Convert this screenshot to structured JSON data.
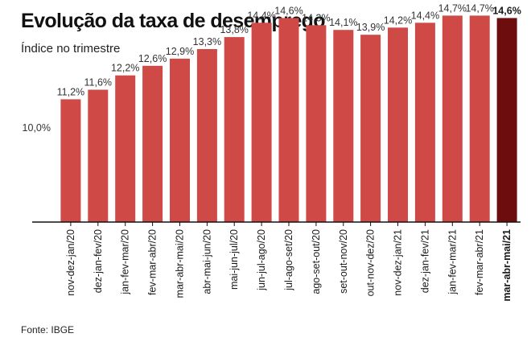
{
  "header": {
    "title": "Evolução da taxa de desemprego",
    "subtitle": "Índice no trimestre"
  },
  "footer": {
    "source": "Fonte: IBGE"
  },
  "colors": {
    "bar": "#cf4a46",
    "bar_highlight": "#6e0d0d",
    "axis": "#111111",
    "gridline": "#d9d9d9"
  },
  "chart_data": {
    "type": "bar",
    "title": "Evolução da taxa de desemprego",
    "subtitle": "Índice no trimestre",
    "categories": [
      "nov-dez-jan/20",
      "dez-jan-fev/20",
      "jan-fev-mar/20",
      "fev-mar-abr/20",
      "mar-abr-mai/20",
      "abr-mai-jun/20",
      "mai-jun-jul/20",
      "jun-jul-ago/20",
      "jul-ago-set/20",
      "ago-set-out/20",
      "set-out-nov/20",
      "out-nov-dez/20",
      "nov-dez-jan/21",
      "dez-jan-fev/21",
      "jan-fev-mar/21",
      "fev-mar-abr/21",
      "mar-abr-mai/21"
    ],
    "values": [
      11.2,
      11.6,
      12.2,
      12.6,
      12.9,
      13.3,
      13.8,
      14.4,
      14.6,
      14.3,
      14.1,
      13.9,
      14.2,
      14.4,
      14.7,
      14.7,
      14.6
    ],
    "value_labels": [
      "11,2%",
      "11,6%",
      "12,2%",
      "12,6%",
      "12,9%",
      "13,3%",
      "13,8%",
      "14,4%",
      "14,6%",
      "14,3%",
      "14,1%",
      "13,9%",
      "14,2%",
      "14,4%",
      "14,7%",
      "14,7%",
      "14,6%"
    ],
    "highlight_index": 16,
    "yticks": [
      {
        "value": 10,
        "label": "10,0%"
      }
    ],
    "grid": false,
    "legend": "none",
    "source": "Fonte: IBGE"
  }
}
